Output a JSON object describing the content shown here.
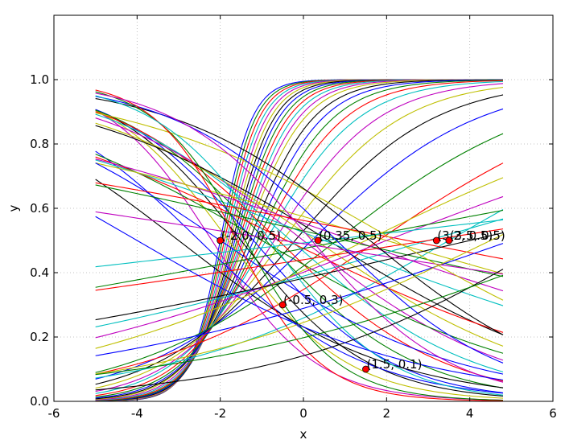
{
  "chart_data": {
    "type": "line",
    "xlabel": "x",
    "ylabel": "y",
    "xlim": [
      -6,
      6
    ],
    "ylim": [
      0.0,
      1.2
    ],
    "x_ticks": [
      "-6",
      "-4",
      "-2",
      "0",
      "2",
      "4",
      "6"
    ],
    "y_ticks": [
      "0.0",
      "0.2",
      "0.4",
      "0.6",
      "0.8",
      "1.0"
    ],
    "grid": true,
    "x_range_of_curves": [
      -5.0,
      4.8
    ],
    "series_colors": [
      "#0000ff",
      "#008000",
      "#ff0000",
      "#00bfbf",
      "#bf00bf",
      "#bfbf00",
      "#000000"
    ],
    "series": [
      {
        "x0": -2.0,
        "k": 2.6
      },
      {
        "x0": -1.95,
        "k": 2.5
      },
      {
        "x0": -1.9,
        "k": 2.4
      },
      {
        "x0": -1.85,
        "k": 2.3
      },
      {
        "x0": -1.8,
        "k": 2.2
      },
      {
        "x0": -1.75,
        "k": 2.1
      },
      {
        "x0": -1.7,
        "k": 2.0
      },
      {
        "x0": -1.65,
        "k": 1.9
      },
      {
        "x0": -1.6,
        "k": 1.8
      },
      {
        "x0": -1.55,
        "k": 1.7
      },
      {
        "x0": -1.5,
        "k": 1.6
      },
      {
        "x0": -1.45,
        "k": 1.5
      },
      {
        "x0": -1.4,
        "k": 1.4
      },
      {
        "x0": -1.3,
        "k": 1.3
      },
      {
        "x0": -1.2,
        "k": 1.2
      },
      {
        "x0": -1.1,
        "k": 1.1
      },
      {
        "x0": -1.0,
        "k": 1.0
      },
      {
        "x0": -0.9,
        "k": 0.9
      },
      {
        "x0": -0.7,
        "k": 0.8
      },
      {
        "x0": -0.5,
        "k": 0.7
      },
      {
        "x0": -0.2,
        "k": 0.6
      },
      {
        "x0": 0.2,
        "k": 0.5
      },
      {
        "x0": 0.8,
        "k": 0.4
      },
      {
        "x0": 1.8,
        "k": 0.35
      },
      {
        "x0": 3.5,
        "k": 0.3
      },
      {
        "x0": -2.2,
        "k": -0.8
      },
      {
        "x0": -1.8,
        "k": -0.7
      },
      {
        "x0": -1.5,
        "k": -0.65
      },
      {
        "x0": -1.2,
        "k": -0.6
      },
      {
        "x0": -0.9,
        "k": -0.55
      },
      {
        "x0": -0.6,
        "k": -0.5
      },
      {
        "x0": -0.3,
        "k": -0.45
      },
      {
        "x0": 0.0,
        "k": -0.4
      },
      {
        "x0": 0.3,
        "k": -0.35
      },
      {
        "x0": 0.6,
        "k": -0.32
      },
      {
        "x0": -2.5,
        "k": -0.5
      },
      {
        "x0": -1.0,
        "k": -0.3
      },
      {
        "x0": -0.4,
        "k": -0.25
      },
      {
        "x0": 0.5,
        "k": -0.2
      },
      {
        "x0": 1.2,
        "k": -0.18
      },
      {
        "x0": 2.0,
        "k": -0.15
      },
      {
        "x0": -3.0,
        "k": -0.4
      },
      {
        "x0": -2.0,
        "k": -0.35
      },
      {
        "x0": 1.0,
        "k": -0.12
      },
      {
        "x0": 2.5,
        "k": -0.1
      },
      {
        "x0": 3.0,
        "k": 0.15
      },
      {
        "x0": 2.0,
        "k": 0.2
      },
      {
        "x0": 1.5,
        "k": 0.25
      },
      {
        "x0": 4.0,
        "k": 0.12
      },
      {
        "x0": 5.0,
        "k": 0.18
      },
      {
        "x0": 1.0,
        "k": 0.1
      },
      {
        "x0": 3.0,
        "k": 0.08
      },
      {
        "x0": 0.5,
        "k": 0.06
      },
      {
        "x0": -0.5,
        "k": -0.08
      },
      {
        "x0": 2.2,
        "k": -0.3
      },
      {
        "x0": 1.6,
        "k": -0.42
      },
      {
        "x0": 0.8,
        "k": -0.5
      },
      {
        "x0": -1.4,
        "k": -0.9
      },
      {
        "x0": -1.6,
        "k": -1.0
      },
      {
        "x0": -0.8,
        "k": -0.7
      },
      {
        "x0": 0.2,
        "k": -0.6
      },
      {
        "x0": 4.5,
        "k": 0.25
      },
      {
        "x0": 6.0,
        "k": 0.3
      },
      {
        "x0": -4.0,
        "k": -0.3
      },
      {
        "x0": 7.0,
        "k": 0.2
      }
    ],
    "points": [
      {
        "x": -2.0,
        "y": 0.5,
        "label": "(-2.0, 0.5)"
      },
      {
        "x": 0.35,
        "y": 0.5,
        "label": "(0.35, 0.5)"
      },
      {
        "x": 3.2,
        "y": 0.5,
        "label": "(3.2, 0.5)"
      },
      {
        "x": 3.5,
        "y": 0.5,
        "label": "(3.5, 0.5)"
      },
      {
        "x": -0.5,
        "y": 0.3,
        "label": "(-0.5, 0.3)"
      },
      {
        "x": 1.5,
        "y": 0.1,
        "label": "(1.5, 0.1)"
      }
    ]
  }
}
